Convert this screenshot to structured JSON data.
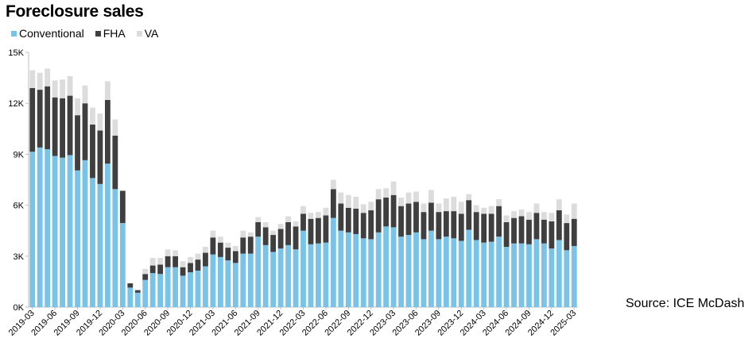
{
  "title": "Foreclosure sales",
  "source": "Source: ICE McDash",
  "legend": {
    "conventional": "Conventional",
    "fha": "FHA",
    "va": "VA"
  },
  "colors": {
    "conventional": "#7ac3e8",
    "fha": "#3f3f3f",
    "va": "#dcdcdc",
    "axis": "#bfbfbf"
  },
  "chart_data": {
    "type": "bar",
    "stacked": true,
    "ylim": [
      0,
      15000
    ],
    "yticks": [
      0,
      3000,
      6000,
      9000,
      12000,
      15000
    ],
    "ytick_labels": [
      "0K",
      "3K",
      "6K",
      "9K",
      "12K",
      "15K"
    ],
    "grid": false,
    "legend_position": "top-left",
    "categories": [
      "2019-03",
      "2019-04",
      "2019-05",
      "2019-06",
      "2019-07",
      "2019-08",
      "2019-09",
      "2019-10",
      "2019-11",
      "2019-12",
      "2020-01",
      "2020-02",
      "2020-03",
      "2020-04",
      "2020-05",
      "2020-06",
      "2020-07",
      "2020-08",
      "2020-09",
      "2020-10",
      "2020-11",
      "2020-12",
      "2021-01",
      "2021-02",
      "2021-03",
      "2021-04",
      "2021-05",
      "2021-06",
      "2021-07",
      "2021-08",
      "2021-09",
      "2021-10",
      "2021-11",
      "2021-12",
      "2022-01",
      "2022-02",
      "2022-03",
      "2022-04",
      "2022-05",
      "2022-06",
      "2022-07",
      "2022-08",
      "2022-09",
      "2022-10",
      "2022-11",
      "2022-12",
      "2023-01",
      "2023-02",
      "2023-03",
      "2023-04",
      "2023-05",
      "2023-06",
      "2023-07",
      "2023-08",
      "2023-09",
      "2023-10",
      "2023-11",
      "2023-12",
      "2024-01",
      "2024-02",
      "2024-03",
      "2024-04",
      "2024-05",
      "2024-06",
      "2024-07",
      "2024-08",
      "2024-09",
      "2024-10",
      "2024-11",
      "2024-12",
      "2025-01",
      "2025-02",
      "2025-03"
    ],
    "xtick_labels": [
      "2019-03",
      "2019-06",
      "2019-09",
      "2019-12",
      "2020-03",
      "2020-06",
      "2020-09",
      "2020-12",
      "2021-03",
      "2021-06",
      "2021-09",
      "2021-12",
      "2022-03",
      "2022-06",
      "2022-09",
      "2022-12",
      "2023-03",
      "2023-06",
      "2023-09",
      "2023-12",
      "2024-03",
      "2024-06",
      "2024-09",
      "2024-12",
      "2025-03"
    ],
    "series": [
      {
        "name": "Conventional",
        "values": [
          9150,
          9400,
          9300,
          8900,
          8800,
          8950,
          8050,
          8650,
          7600,
          7250,
          8450,
          6950,
          4950,
          1150,
          850,
          1600,
          2000,
          1950,
          2350,
          2350,
          1850,
          2050,
          2150,
          2400,
          3100,
          2950,
          2750,
          2600,
          3150,
          3150,
          4150,
          3650,
          3250,
          3450,
          3650,
          3400,
          4500,
          3700,
          3750,
          3800,
          5250,
          4500,
          4400,
          4300,
          4050,
          4000,
          4400,
          4750,
          4700,
          4150,
          4250,
          4400,
          4000,
          4500,
          4000,
          4150,
          4050,
          3900,
          4550,
          3950,
          3800,
          3850,
          4150,
          3550,
          3750,
          3750,
          3700,
          4000,
          3750,
          3450,
          3950,
          3350,
          3600
        ]
      },
      {
        "name": "FHA",
        "values": [
          3750,
          3400,
          3700,
          3450,
          3500,
          3500,
          3250,
          3350,
          3150,
          3150,
          3750,
          3150,
          1900,
          250,
          150,
          350,
          450,
          550,
          650,
          650,
          500,
          550,
          650,
          800,
          1000,
          850,
          750,
          700,
          950,
          1000,
          850,
          1050,
          1000,
          1150,
          1350,
          1350,
          1000,
          1500,
          1500,
          1600,
          1700,
          1600,
          1450,
          1500,
          1500,
          1700,
          1950,
          1700,
          1900,
          1800,
          1850,
          1800,
          1600,
          1650,
          1600,
          1500,
          1600,
          1600,
          1750,
          1650,
          1700,
          1650,
          1800,
          1450,
          1500,
          1600,
          1450,
          1550,
          1400,
          1600,
          1750,
          1600,
          1600
        ]
      },
      {
        "name": "VA",
        "values": [
          1050,
          1000,
          1050,
          1000,
          1100,
          1150,
          1000,
          1050,
          1000,
          1000,
          1100,
          950,
          0,
          0,
          0,
          300,
          450,
          400,
          400,
          350,
          350,
          350,
          350,
          350,
          400,
          350,
          300,
          300,
          400,
          250,
          300,
          300,
          250,
          300,
          350,
          300,
          450,
          350,
          350,
          450,
          550,
          650,
          750,
          700,
          500,
          500,
          600,
          550,
          800,
          500,
          650,
          600,
          500,
          750,
          500,
          750,
          850,
          700,
          350,
          400,
          350,
          450,
          400,
          400,
          400,
          400,
          450,
          550,
          450,
          500,
          650,
          500,
          900
        ]
      }
    ]
  }
}
